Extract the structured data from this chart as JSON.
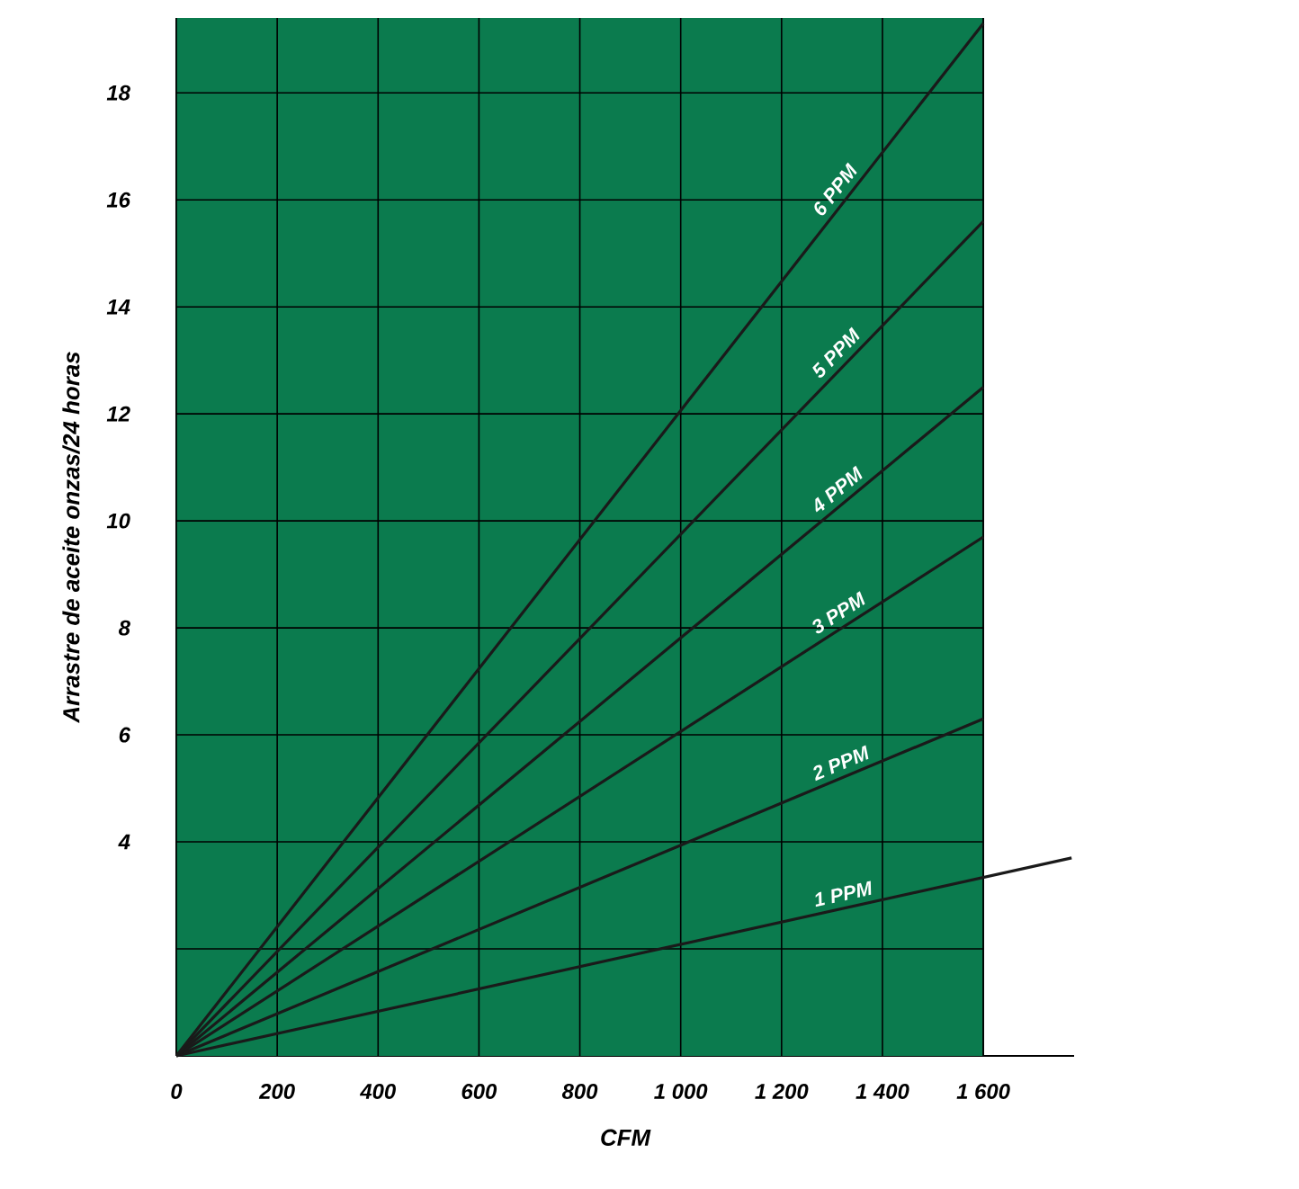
{
  "chart_data": {
    "type": "line",
    "xlabel": "CFM",
    "ylabel": "Arrastre de aceite onzas/24 horas",
    "xlim": [
      0,
      1780
    ],
    "ylim": [
      0,
      19.4
    ],
    "xticks": [
      0,
      200,
      400,
      600,
      800,
      {
        "value": 1000,
        "label": "1 000"
      },
      {
        "value": 1200,
        "label": "1 200"
      },
      {
        "value": 1400,
        "label": "1 400"
      },
      {
        "value": 1600,
        "label": "1 600"
      }
    ],
    "yticks": [
      {
        "value": 2,
        "label": null
      },
      4,
      6,
      8,
      10,
      12,
      14,
      16,
      18
    ],
    "grid": true,
    "bands": [
      {
        "axis": "x",
        "from": 0,
        "to": 1600,
        "label": null,
        "color": "#0b7b4e"
      }
    ],
    "series": [
      {
        "name": "1 PPM",
        "color": "#1a1a1a",
        "x": [
          0,
          1775
        ],
        "values": [
          0,
          3.7
        ]
      },
      {
        "name": "2 PPM",
        "color": "#1a1a1a",
        "x": [
          0,
          1600
        ],
        "values": [
          0,
          6.3
        ]
      },
      {
        "name": "3 PPM",
        "color": "#1a1a1a",
        "x": [
          0,
          1600
        ],
        "values": [
          0,
          9.7
        ]
      },
      {
        "name": "4 PPM",
        "color": "#1a1a1a",
        "x": [
          0,
          1600
        ],
        "values": [
          0,
          12.5
        ]
      },
      {
        "name": "5 PPM",
        "color": "#1a1a1a",
        "x": [
          0,
          1600
        ],
        "values": [
          0,
          15.6
        ]
      },
      {
        "name": "6 PPM",
        "color": "#1a1a1a",
        "x": [
          0,
          1600
        ],
        "values": [
          0,
          19.3
        ]
      }
    ]
  }
}
